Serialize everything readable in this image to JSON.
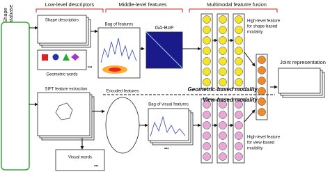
{
  "database": {
    "label": [
      "Shape",
      "database"
    ]
  },
  "stages": {
    "low": "Low-level descriptors",
    "middle": "Middle-level features",
    "fusion": "Multimodal featutre fusion"
  },
  "geometric": {
    "shape_descriptors": "Shape descriptors",
    "geometric_words": "Geometric words",
    "bag_of_features": "Bag of features",
    "ga_bof": "GA-BoF",
    "high_level": [
      "High-level feature",
      "for shape-based",
      "modality"
    ],
    "modality": "Geometric-based modality"
  },
  "view": {
    "modality": "View-based modality",
    "sift": "SIFT  feature extraction",
    "encoded": "Encoded features",
    "bag_visual": "Bag of visual features",
    "visual_words": "Visual words",
    "high_level": [
      "High-level feature",
      "for view-based",
      "modality"
    ]
  },
  "joint": "Joint representation",
  "more": "•••"
}
